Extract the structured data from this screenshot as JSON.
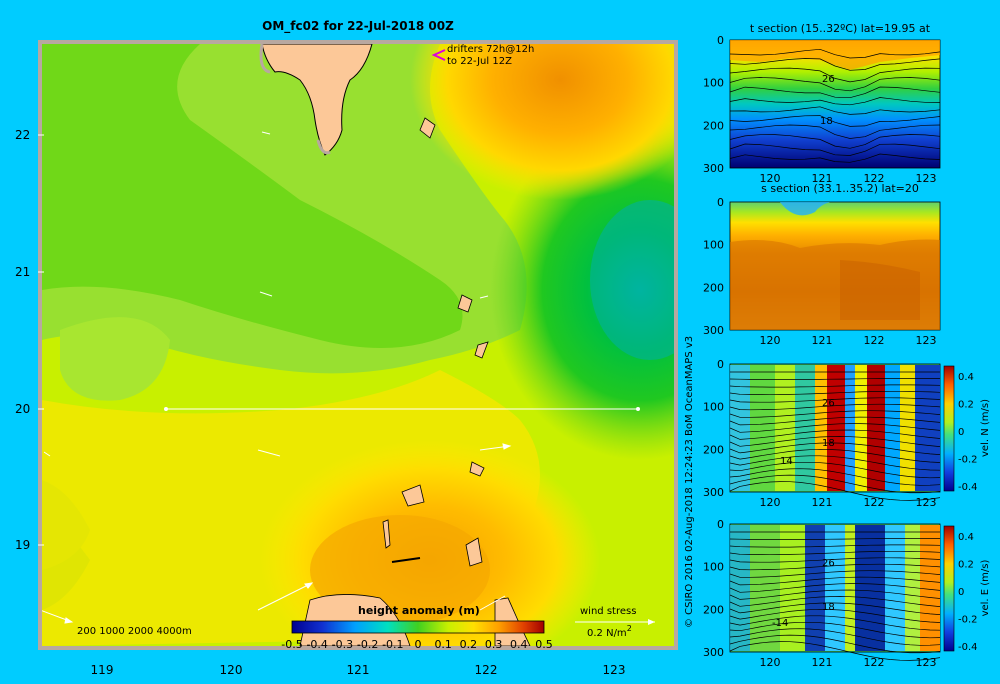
{
  "colors": {
    "background": "#00ccff",
    "land": "#fcc898",
    "frame": "#b8a8a0",
    "white": "#ffffff",
    "drifter_marker": "#dd00dd"
  },
  "main_map": {
    "title": "OM_fc02 for 22-Jul-2018 00Z",
    "y_ticks": [
      "22",
      "21",
      "20",
      "19"
    ],
    "x_ticks": [
      "119",
      "120",
      "121",
      "122",
      "123"
    ],
    "drifters_line1": "drifters 72h@12h",
    "drifters_line2": "to 22-Jul 12Z",
    "bathymetry_legend": "200  1000  2000  4000m",
    "colorbar_title": "height anomaly (m)",
    "colorbar_ticks": [
      "-0.5",
      "-0.4",
      "-0.3",
      "-0.2",
      "-0.1",
      "0",
      "0.1",
      "0.2",
      "0.3",
      "0.4",
      "0.5"
    ],
    "wind_label": "wind stress",
    "wind_scale_prefix": "0.2 N/m",
    "wind_scale_sup": "2"
  },
  "panels": {
    "x_ticks": [
      "120",
      "121",
      "122",
      "123"
    ],
    "y_ticks": [
      "0",
      "100",
      "200",
      "300"
    ],
    "temp": {
      "title": "t section (15..32ºC) lat=19.95 at",
      "contour_labels": [
        "26",
        "18"
      ]
    },
    "salt": {
      "title": "s section (33.1..35.2) lat=20"
    },
    "veln": {
      "contour_labels": [
        "26",
        "18",
        "14"
      ],
      "cbar_ticks": [
        "0.4",
        "0.2",
        "0",
        "-0.2",
        "-0.4"
      ],
      "cbar_label": "vel. N (m/s)"
    },
    "vele": {
      "contour_labels": [
        "26",
        "18",
        "-14"
      ],
      "cbar_ticks": [
        "0.4",
        "0.2",
        "0",
        "-0.2",
        "-0.4"
      ],
      "cbar_label": "vel. E (m/s)"
    }
  },
  "credit": "© CSIRO 2016   02-Aug-2018 12:24:23 BoM OceanMAPS v3"
}
